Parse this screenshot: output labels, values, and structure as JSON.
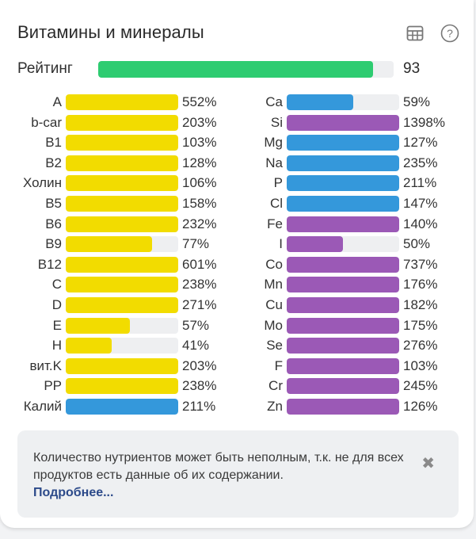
{
  "header": {
    "title": "Витамины и минералы",
    "icons": [
      "table-icon",
      "help-icon"
    ]
  },
  "rating": {
    "label": "Рейтинг",
    "value": "93",
    "fraction": 0.93,
    "color": "#2ecc71"
  },
  "colors": {
    "vitamin": "#f2dc00",
    "mineral_blue": "#3498db",
    "mineral_purple": "#9b59b6",
    "track": "#eeeff1"
  },
  "notice": {
    "text": "Количество нутриентов может быть неполным, т.к. не для всех продуктов есть данные об их содержании.",
    "link": "Подробнее...",
    "close": "✖"
  },
  "chart_data": {
    "type": "bar",
    "title": "Витамины и минералы",
    "unit": "% of daily norm (bar fill capped at 100%)",
    "series": [
      {
        "name": "left-column",
        "items": [
          {
            "label": "A",
            "value": 552,
            "color": "yellow"
          },
          {
            "label": "b-car",
            "value": 203,
            "color": "yellow"
          },
          {
            "label": "B1",
            "value": 103,
            "color": "yellow"
          },
          {
            "label": "B2",
            "value": 128,
            "color": "yellow"
          },
          {
            "label": "Холин",
            "value": 106,
            "color": "yellow"
          },
          {
            "label": "B5",
            "value": 158,
            "color": "yellow"
          },
          {
            "label": "B6",
            "value": 232,
            "color": "yellow"
          },
          {
            "label": "B9",
            "value": 77,
            "color": "yellow"
          },
          {
            "label": "B12",
            "value": 601,
            "color": "yellow"
          },
          {
            "label": "C",
            "value": 238,
            "color": "yellow"
          },
          {
            "label": "D",
            "value": 271,
            "color": "yellow"
          },
          {
            "label": "E",
            "value": 57,
            "color": "yellow"
          },
          {
            "label": "H",
            "value": 41,
            "color": "yellow"
          },
          {
            "label": "вит.K",
            "value": 203,
            "color": "yellow"
          },
          {
            "label": "PP",
            "value": 238,
            "color": "yellow"
          },
          {
            "label": "Калий",
            "value": 211,
            "color": "blue"
          }
        ]
      },
      {
        "name": "right-column",
        "items": [
          {
            "label": "Ca",
            "value": 59,
            "color": "blue"
          },
          {
            "label": "Si",
            "value": 1398,
            "color": "purple"
          },
          {
            "label": "Mg",
            "value": 127,
            "color": "blue"
          },
          {
            "label": "Na",
            "value": 235,
            "color": "blue"
          },
          {
            "label": "P",
            "value": 211,
            "color": "blue"
          },
          {
            "label": "Cl",
            "value": 147,
            "color": "blue"
          },
          {
            "label": "Fe",
            "value": 140,
            "color": "purple"
          },
          {
            "label": "I",
            "value": 50,
            "color": "purple"
          },
          {
            "label": "Co",
            "value": 737,
            "color": "purple"
          },
          {
            "label": "Mn",
            "value": 176,
            "color": "purple"
          },
          {
            "label": "Cu",
            "value": 182,
            "color": "purple"
          },
          {
            "label": "Mo",
            "value": 175,
            "color": "purple"
          },
          {
            "label": "Se",
            "value": 276,
            "color": "purple"
          },
          {
            "label": "F",
            "value": 103,
            "color": "purple"
          },
          {
            "label": "Cr",
            "value": 245,
            "color": "purple"
          },
          {
            "label": "Zn",
            "value": 126,
            "color": "purple"
          }
        ]
      }
    ]
  }
}
